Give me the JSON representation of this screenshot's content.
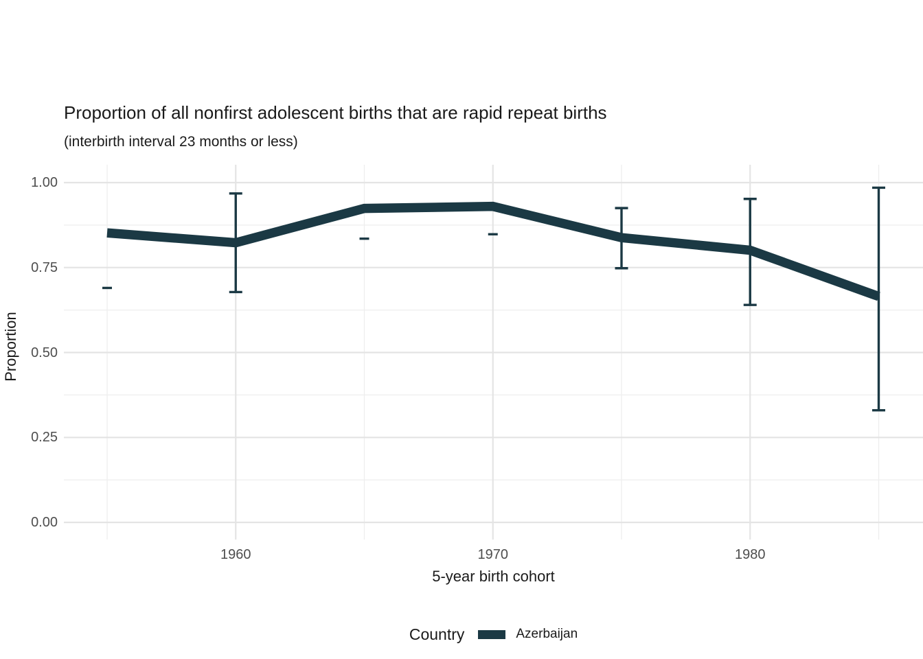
{
  "chart_data": {
    "type": "line",
    "title": "Proportion of all nonfirst adolescent births that are rapid repeat births",
    "subtitle": "(interbirth interval 23 months or less)",
    "xlabel": "5-year birth cohort",
    "ylabel": "Proportion",
    "x": [
      1955,
      1960,
      1965,
      1970,
      1975,
      1980,
      1985
    ],
    "xticks": [
      {
        "value": 1960,
        "label": "1960"
      },
      {
        "value": 1970,
        "label": "1970"
      },
      {
        "value": 1980,
        "label": "1980"
      }
    ],
    "yticks": [
      {
        "value": 1.0,
        "label": "1.00"
      },
      {
        "value": 0.75,
        "label": "0.75"
      },
      {
        "value": 0.5,
        "label": "0.50"
      },
      {
        "value": 0.25,
        "label": "0.25"
      },
      {
        "value": 0.0,
        "label": "0.00"
      }
    ],
    "xlim": [
      1953.3,
      1986.7
    ],
    "ylim": [
      -0.05,
      1.05
    ],
    "grid": true,
    "legend_position": "bottom",
    "series": [
      {
        "name": "Azerbaijan",
        "color": "#1b3944",
        "values": [
          0.852,
          0.823,
          0.924,
          0.93,
          0.838,
          0.801,
          0.665
        ],
        "ci_low": [
          null,
          0.678,
          null,
          null,
          0.748,
          0.64,
          0.33
        ],
        "ci_high": [
          null,
          0.968,
          null,
          null,
          0.925,
          0.952,
          0.985
        ],
        "cap_marks": [
          0.69,
          null,
          0.835,
          0.848,
          null,
          null,
          null
        ]
      }
    ]
  },
  "legend": {
    "title": "Country",
    "entries": [
      {
        "label": "Azerbaijan",
        "color": "#1b3944"
      }
    ]
  }
}
